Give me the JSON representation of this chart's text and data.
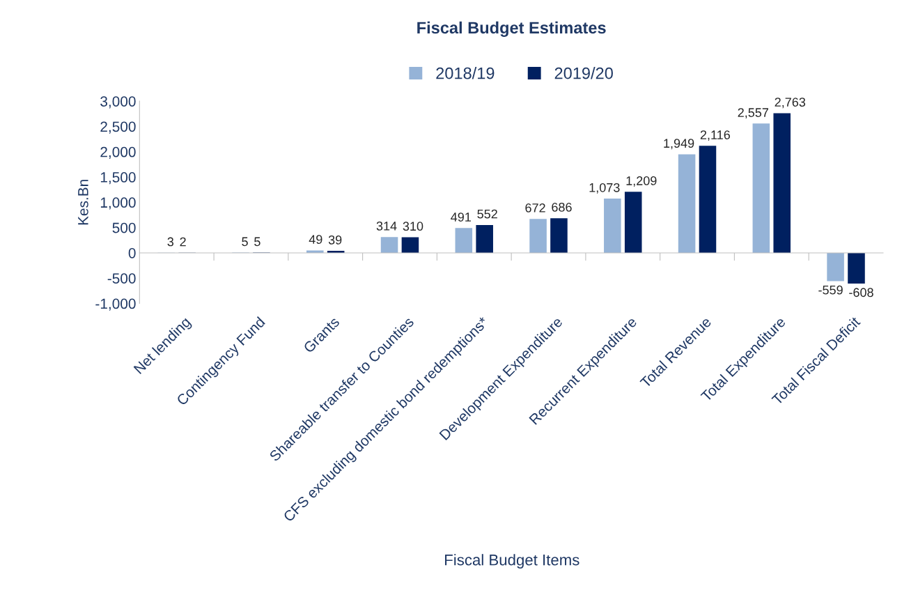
{
  "chart_data": {
    "type": "bar",
    "title": "Fiscal Budget Estimates",
    "xlabel": "Fiscal Budget Items",
    "ylabel": "Kes.Bn",
    "categories": [
      "Net lending",
      "Contingency Fund",
      "Grants",
      "Shareable transfer to Counties",
      "CFS excluding domestic bond redemptions*",
      "Development Expenditure",
      "Recurrent Expenditure",
      "Total Revenue",
      "Total Expenditure",
      "Total Fiscal Deficit"
    ],
    "series": [
      {
        "name": "2018/19",
        "color": "#95b3d7",
        "values": [
          3,
          5,
          49,
          314,
          491,
          672,
          1073,
          1949,
          2557,
          -559
        ],
        "value_labels": [
          "3",
          "5",
          "49",
          "314",
          "491",
          "672",
          "1,073",
          "1,949",
          "2,557",
          "-559"
        ]
      },
      {
        "name": "2019/20",
        "color": "#002060",
        "values": [
          2,
          5,
          39,
          310,
          552,
          686,
          1209,
          2116,
          2763,
          -608
        ],
        "value_labels": [
          "2",
          "5",
          "39",
          "310",
          "552",
          "686",
          "1,209",
          "2,116",
          "2,763",
          "-608"
        ]
      }
    ],
    "ylim": [
      -1000,
      3000
    ],
    "yticks": [
      {
        "value": -1000,
        "label": "-1,000"
      },
      {
        "value": -500,
        "label": "-500"
      },
      0,
      500,
      {
        "value": 1000,
        "label": "1,000"
      },
      {
        "value": 1500,
        "label": "1,500"
      },
      {
        "value": 2000,
        "label": "2,000"
      },
      {
        "value": 2500,
        "label": "2,500"
      },
      {
        "value": 3000,
        "label": "3,000"
      }
    ],
    "legend": "top"
  }
}
